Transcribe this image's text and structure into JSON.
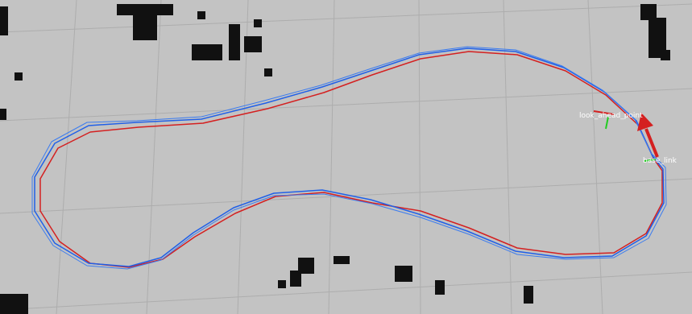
{
  "frames": [
    {
      "label": "look_ahead_point"
    },
    {
      "label": "base_link"
    }
  ]
}
